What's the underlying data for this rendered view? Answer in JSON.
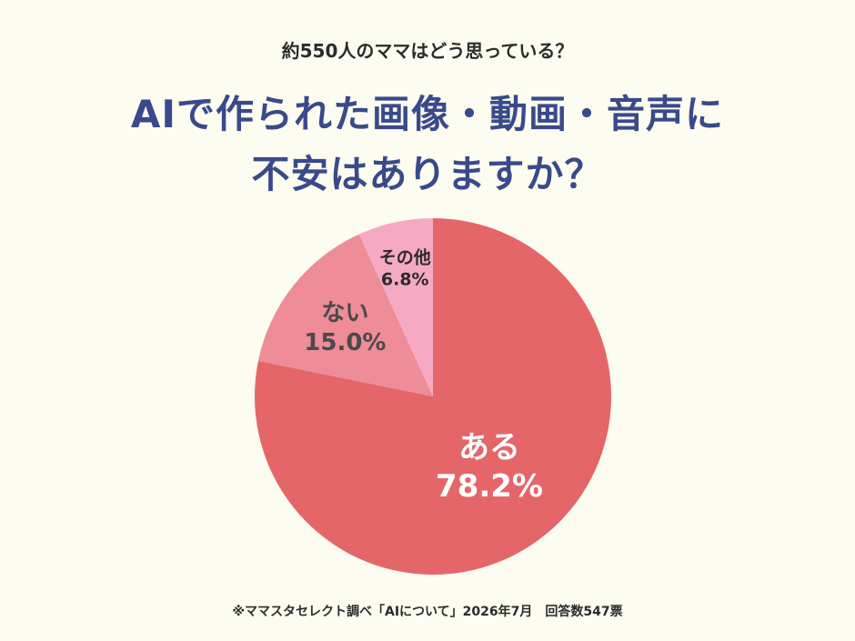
{
  "header": {
    "subtitle": "約550人のママはどう思っている？",
    "title_line1": "AIで作られた画像・動画・音声に",
    "title_line2": "不安はありますか？"
  },
  "footer": {
    "note": "※ママスタセレクト調べ「AIについて」2026年7月　回答数547票"
  },
  "chart_data": {
    "type": "pie",
    "categories": [
      "ある",
      "ない",
      "その他"
    ],
    "values": [
      78.2,
      15.0,
      6.8
    ],
    "labels": [
      "78.2%",
      "15.0%",
      "6.8%"
    ],
    "colors": [
      "#e46669",
      "#ee8c98",
      "#f5a9c3"
    ],
    "label_colors": [
      "#ffffff",
      "#4a4a4a",
      "#2b2b2b"
    ],
    "start_angle": "12 o'clock",
    "direction": "clockwise"
  }
}
